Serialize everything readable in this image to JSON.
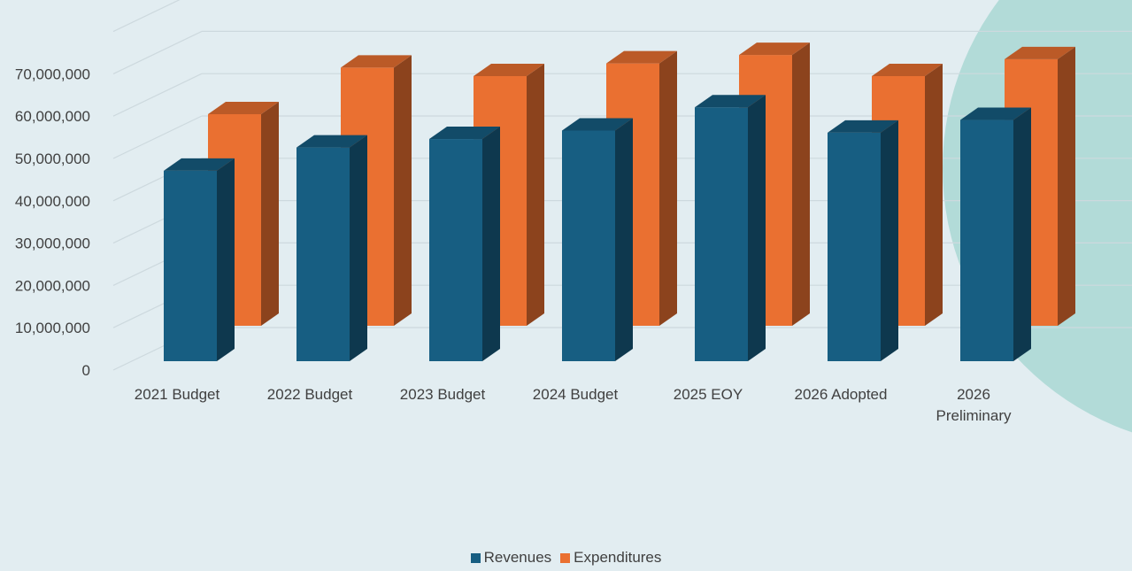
{
  "chart_data": {
    "type": "bar",
    "categories": [
      "2021 Budget",
      "2022 Budget",
      "2023 Budget",
      "2024 Budget",
      "2025 EOY",
      "2026 Adopted",
      "2026 Preliminary"
    ],
    "series": [
      {
        "name": "Revenues",
        "color": "#175e82",
        "values": [
          45000000,
          50500000,
          52500000,
          54500000,
          60000000,
          54000000,
          57000000
        ]
      },
      {
        "name": "Expenditures",
        "color": "#ea7031",
        "values": [
          50000000,
          61000000,
          59000000,
          62000000,
          64000000,
          59000000,
          63000000
        ]
      }
    ],
    "ylim": [
      0,
      70000000
    ],
    "yticks": [
      "0",
      "10,000,000",
      "20,000,000",
      "30,000,000",
      "40,000,000",
      "50,000,000",
      "60,000,000",
      "70,000,000"
    ],
    "style": "3d-column",
    "grid": true,
    "legend": "bottom"
  },
  "legend": {
    "revenues_label": "Revenues",
    "expenditures_label": "Expenditures"
  },
  "decoration": {
    "circle_color": "#b2dbd8"
  }
}
